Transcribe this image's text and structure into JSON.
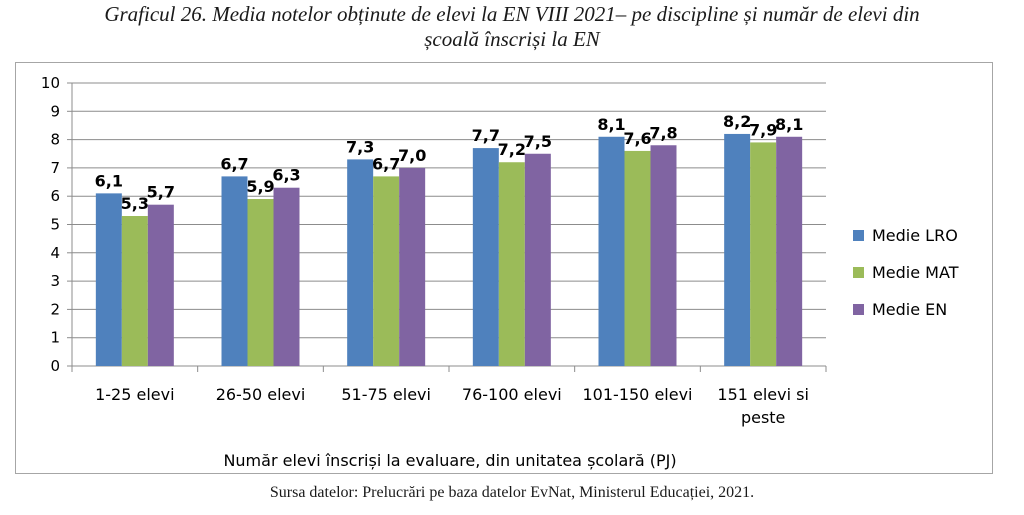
{
  "title_line1": "Graficul 26. Media notelor obținute de elevi la EN VIII 2021– pe discipline și număr de elevi din",
  "title_line2": "școală înscriși la EN",
  "source": "Sursa datelor: Prelucrări pe baza datelor EvNat, Ministerul Educației, 2021.",
  "chart_data": {
    "type": "bar",
    "title": "Graficul 26. Media notelor obținute de elevi la EN VIII 2021– pe discipline și număr de elevi din școală înscriși la EN",
    "xlabel": "Număr elevi înscriși la evaluare, din unitatea școlară (PJ)",
    "ylabel": "",
    "ylim": [
      0,
      10
    ],
    "yticks": [
      0,
      1,
      2,
      3,
      4,
      5,
      6,
      7,
      8,
      9,
      10
    ],
    "grid": true,
    "legend_position": "right",
    "categories": [
      [
        "1-25 elevi"
      ],
      [
        "26-50 elevi"
      ],
      [
        "51-75 elevi"
      ],
      [
        "76-100 elevi"
      ],
      [
        "101-150 elevi"
      ],
      [
        "151 elevi si",
        "peste"
      ]
    ],
    "series": [
      {
        "name": "Medie LRO",
        "color": "#4f81bd",
        "values": [
          6.1,
          6.7,
          7.3,
          7.7,
          8.1,
          8.2
        ],
        "labels": [
          "6,1",
          "6,7",
          "7,3",
          "7,7",
          "8,1",
          "8,2"
        ]
      },
      {
        "name": "Medie MAT",
        "color": "#9bbb59",
        "values": [
          5.3,
          5.9,
          6.7,
          7.2,
          7.6,
          7.9
        ],
        "labels": [
          "5,3",
          "5,9",
          "6,7",
          "7,2",
          "7,6",
          "7,9"
        ]
      },
      {
        "name": "Medie EN",
        "color": "#8064a2",
        "values": [
          5.7,
          6.3,
          7.0,
          7.5,
          7.8,
          8.1
        ],
        "labels": [
          "5,7",
          "6,3",
          "7,0",
          "7,5",
          "7,8",
          "8,1"
        ]
      }
    ]
  }
}
